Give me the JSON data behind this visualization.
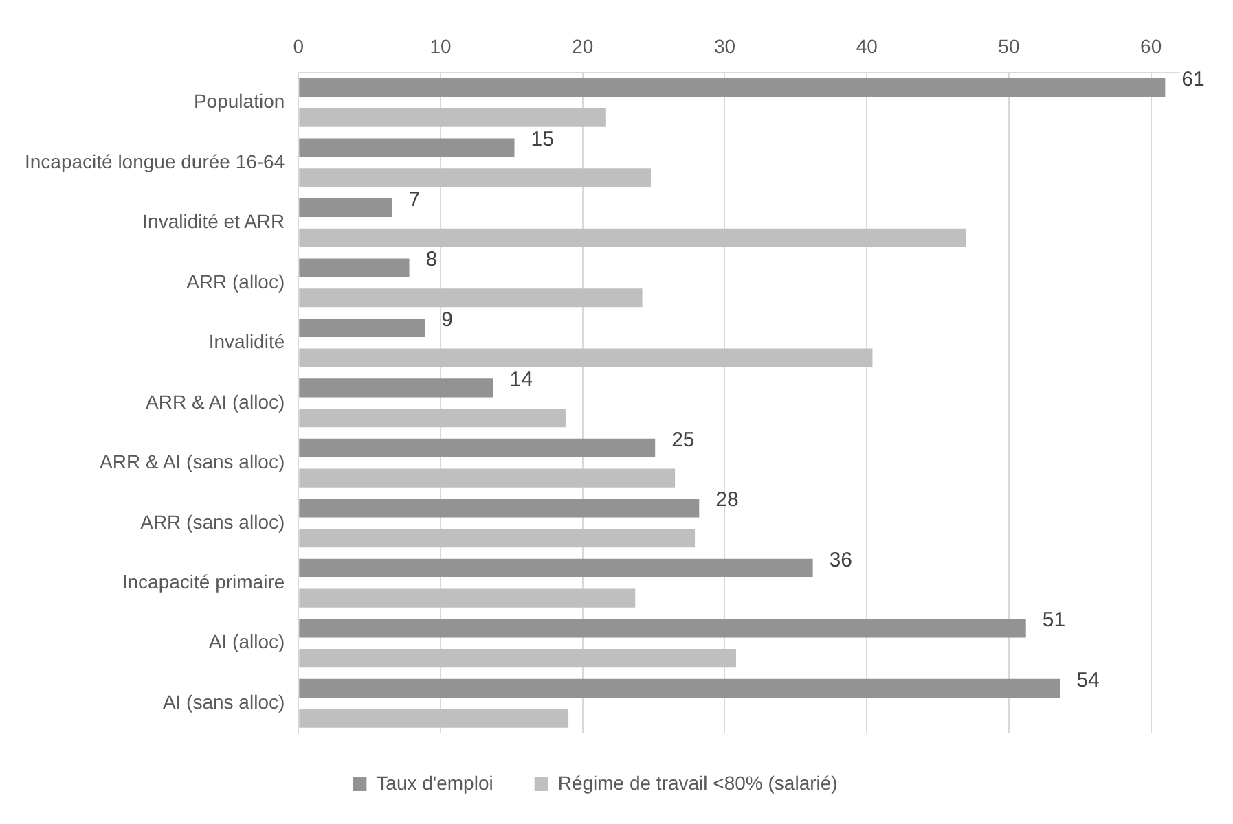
{
  "chart_data": {
    "type": "bar",
    "orientation": "horizontal",
    "categories": [
      "Population",
      "Incapacité longue durée 16-64",
      "Invalidité et ARR",
      "ARR (alloc)",
      "Invalidité",
      "ARR & AI (alloc)",
      "ARR & AI (sans alloc)",
      "ARR (sans alloc)",
      "Incapacité primaire",
      "AI (alloc)",
      "AI (sans alloc)"
    ],
    "series": [
      {
        "name": "Taux d'emploi",
        "color": "#939393",
        "values": [
          61,
          15.2,
          6.6,
          7.8,
          8.9,
          13.7,
          25.1,
          28.2,
          36.2,
          51.2,
          53.6
        ],
        "value_labels": [
          "61",
          "15",
          "7",
          "8",
          "9",
          "14",
          "25",
          "28",
          "36",
          "51",
          "54"
        ]
      },
      {
        "name": "Régime de travail <80% (salarié)",
        "color": "#bfbfbf",
        "values": [
          21.6,
          24.8,
          47.0,
          24.2,
          40.4,
          18.8,
          26.5,
          27.9,
          23.7,
          30.8,
          19.0
        ]
      }
    ],
    "xlim": [
      0,
      62
    ],
    "xticks": [
      0,
      10,
      20,
      30,
      40,
      50,
      60
    ],
    "grid": "x",
    "legend": "bottom"
  }
}
